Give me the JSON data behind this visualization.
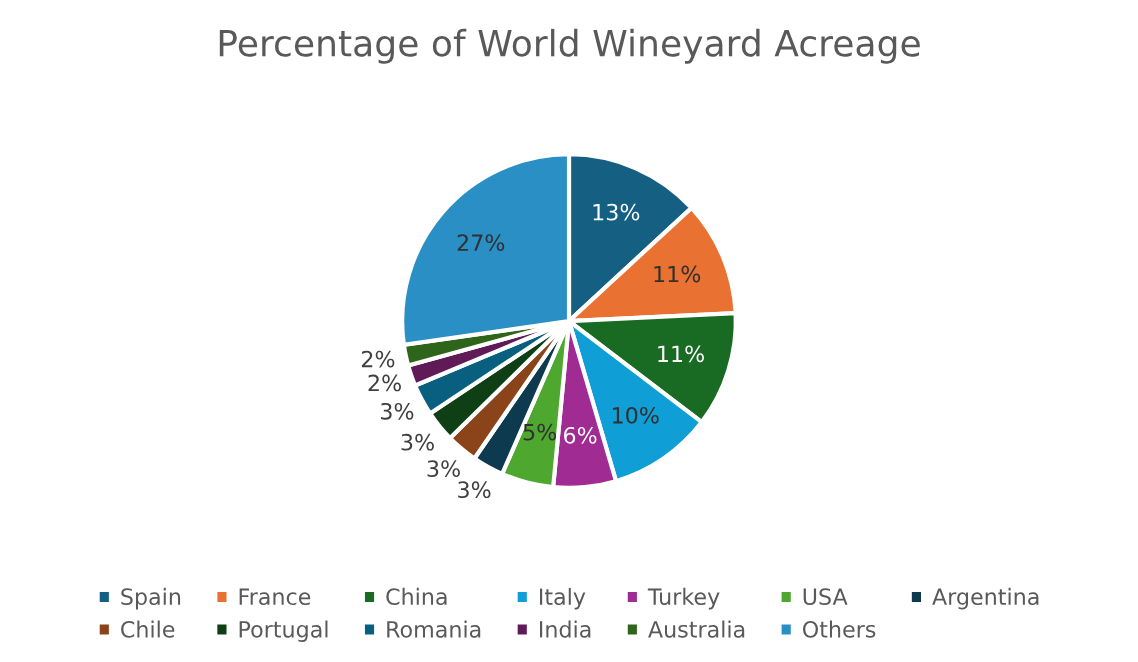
{
  "chart_data": {
    "type": "pie",
    "title": "Percentage of World Wineyard Acreage",
    "categories": [
      "Spain",
      "France",
      "China",
      "Italy",
      "Turkey",
      "USA",
      "Argentina",
      "Chile",
      "Portugal",
      "Romania",
      "India",
      "Australia",
      "Others"
    ],
    "values": [
      13,
      11,
      11,
      10,
      6,
      5,
      3,
      3,
      3,
      3,
      2,
      2,
      27
    ],
    "value_labels": [
      "13%",
      "11%",
      "11%",
      "10%",
      "6%",
      "5%",
      "3%",
      "3%",
      "3%",
      "3%",
      "2%",
      "2%",
      "27%"
    ],
    "colors": [
      "#156082",
      "#e97132",
      "#196b24",
      "#0f9ed5",
      "#a02b93",
      "#4ea72e",
      "#0d3a4e",
      "#8b4419",
      "#0f4015",
      "#095f80",
      "#601a58",
      "#2f641b",
      "#2a8fc4"
    ],
    "legend": "bottom"
  }
}
